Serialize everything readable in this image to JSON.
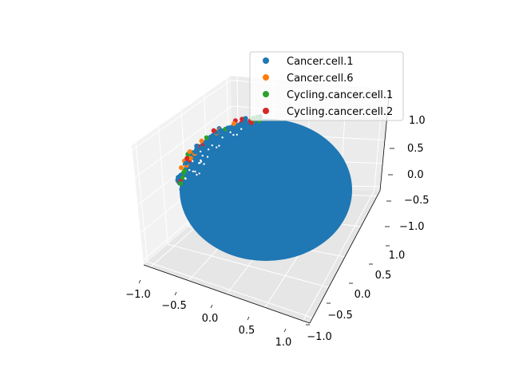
{
  "chart_data": {
    "type": "scatter",
    "projection": "3d",
    "title": "",
    "xlabel": "",
    "ylabel": "",
    "zlabel": "",
    "xlim": [
      -1.0,
      1.0
    ],
    "ylim": [
      -1.0,
      1.0
    ],
    "zlim": [
      -1.0,
      1.0
    ],
    "grid": true,
    "legend_position": "upper-right",
    "x_ticks": [
      "−1.0",
      "−0.5",
      "0.0",
      "0.5",
      "1.0"
    ],
    "y_ticks": [
      "−1.0",
      "−0.5",
      "0.0",
      "0.5",
      "1.0"
    ],
    "z_ticks": [
      "−1.0",
      "−0.5",
      "0.0",
      "0.5",
      "1.0"
    ],
    "description": "Points distributed on the surface of a unit sphere; the Cancer.cell.1 series dominates and covers the visible hemisphere, with a few points of other series visible along the upper-left limb.",
    "series": [
      {
        "name": "Cancer.cell.1",
        "color": "#1f77b4",
        "distribution": "unit-sphere surface, dense"
      },
      {
        "name": "Cancer.cell.6",
        "color": "#ff7f0e",
        "distribution": "unit-sphere surface, sparse"
      },
      {
        "name": "Cycling.cancer.cell.1",
        "color": "#2ca02c",
        "distribution": "unit-sphere surface, sparse"
      },
      {
        "name": "Cycling.cancer.cell.2",
        "color": "#d62728",
        "distribution": "unit-sphere surface, sparse"
      }
    ]
  }
}
